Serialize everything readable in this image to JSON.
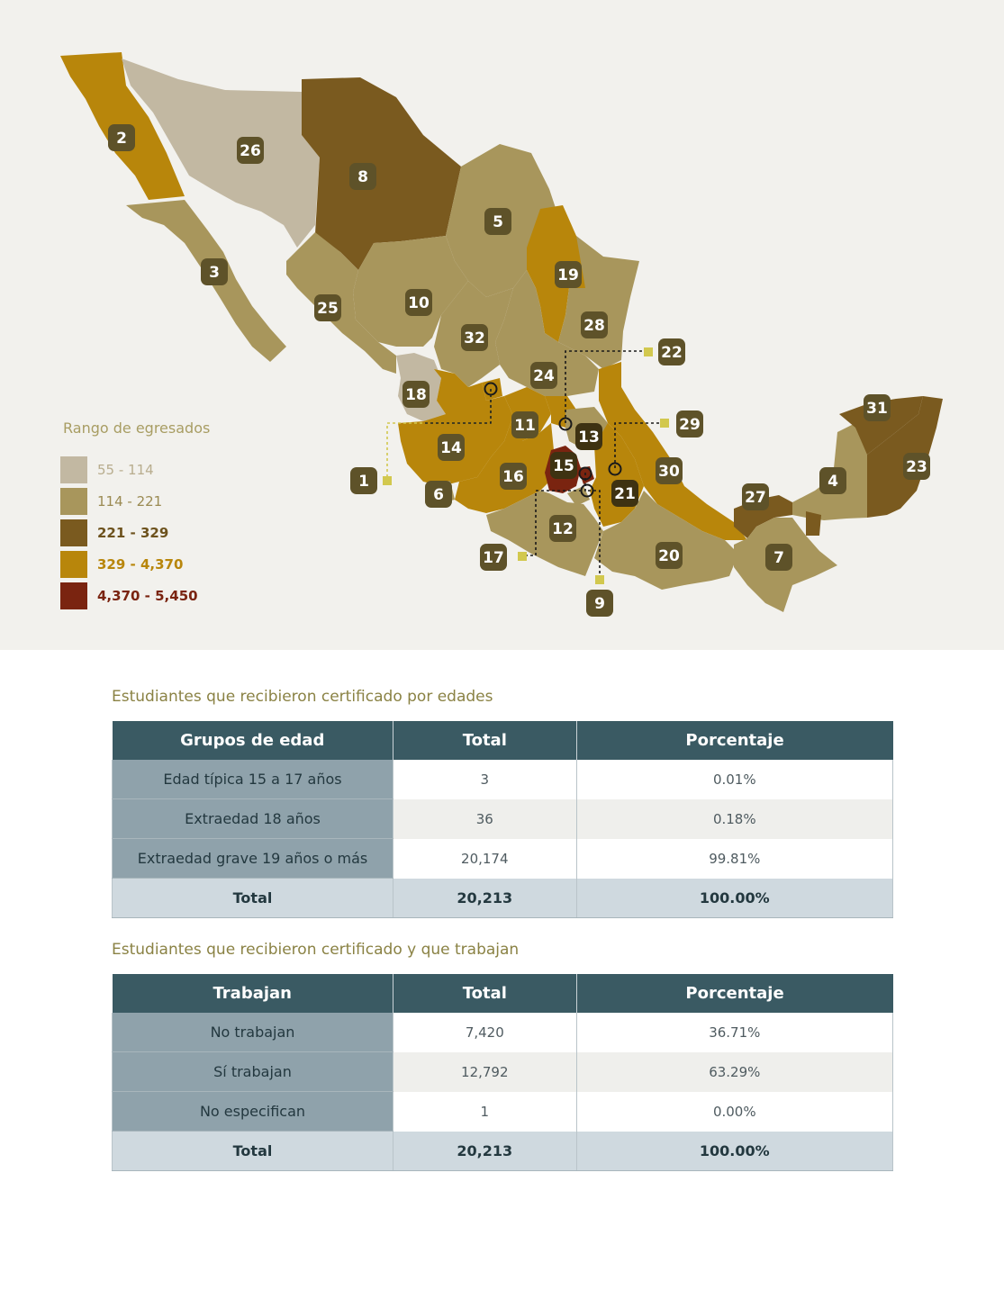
{
  "map": {
    "colors": {
      "range1": "#c2b8a2",
      "range2": "#a8965c",
      "range3": "#7a5a1f",
      "range4": "#b8860b",
      "range5": "#7a2410",
      "badge": "#5e5229",
      "badge_dark": "#3e3212"
    },
    "state_labels": [
      "1",
      "2",
      "3",
      "4",
      "5",
      "6",
      "7",
      "8",
      "9",
      "10",
      "11",
      "12",
      "13",
      "14",
      "15",
      "16",
      "17",
      "18",
      "19",
      "20",
      "21",
      "22",
      "23",
      "24",
      "25",
      "26",
      "27",
      "28",
      "29",
      "30",
      "31",
      "32"
    ],
    "legend": {
      "title": "Rango de egresados",
      "items": [
        {
          "label": "55 - 114",
          "color": "#c2b8a2",
          "text_color": "#b8ad8e"
        },
        {
          "label": "114 - 221",
          "color": "#a8965c",
          "text_color": "#9a8a52"
        },
        {
          "label": "221 - 329",
          "color": "#7a5a1f",
          "text_color": "#6d521d"
        },
        {
          "label": "329 - 4,370",
          "color": "#b8860b",
          "text_color": "#b8860b"
        },
        {
          "label": "4,370 - 5,450",
          "color": "#7a2410",
          "text_color": "#7a2410"
        }
      ]
    }
  },
  "table_ages": {
    "title": "Estudiantes que recibieron certificado por edades",
    "headers": [
      "Grupos de edad",
      "Total",
      "Porcentaje"
    ],
    "rows": [
      [
        "Edad típica 15 a 17 años",
        "3",
        "0.01%"
      ],
      [
        "Extraedad 18 años",
        "36",
        "0.18%"
      ],
      [
        "Extraedad grave 19 años o más",
        "20,174",
        "99.81%"
      ]
    ],
    "total": [
      "Total",
      "20,213",
      "100.00%"
    ]
  },
  "table_work": {
    "title": "Estudiantes que recibieron certificado y que trabajan",
    "headers": [
      "Trabajan",
      "Total",
      "Porcentaje"
    ],
    "rows": [
      [
        "No trabajan",
        "7,420",
        "36.71%"
      ],
      [
        "Sí trabajan",
        "12,792",
        "63.29%"
      ],
      [
        "No especifican",
        "1",
        "0.00%"
      ]
    ],
    "total": [
      "Total",
      "20,213",
      "100.00%"
    ]
  }
}
